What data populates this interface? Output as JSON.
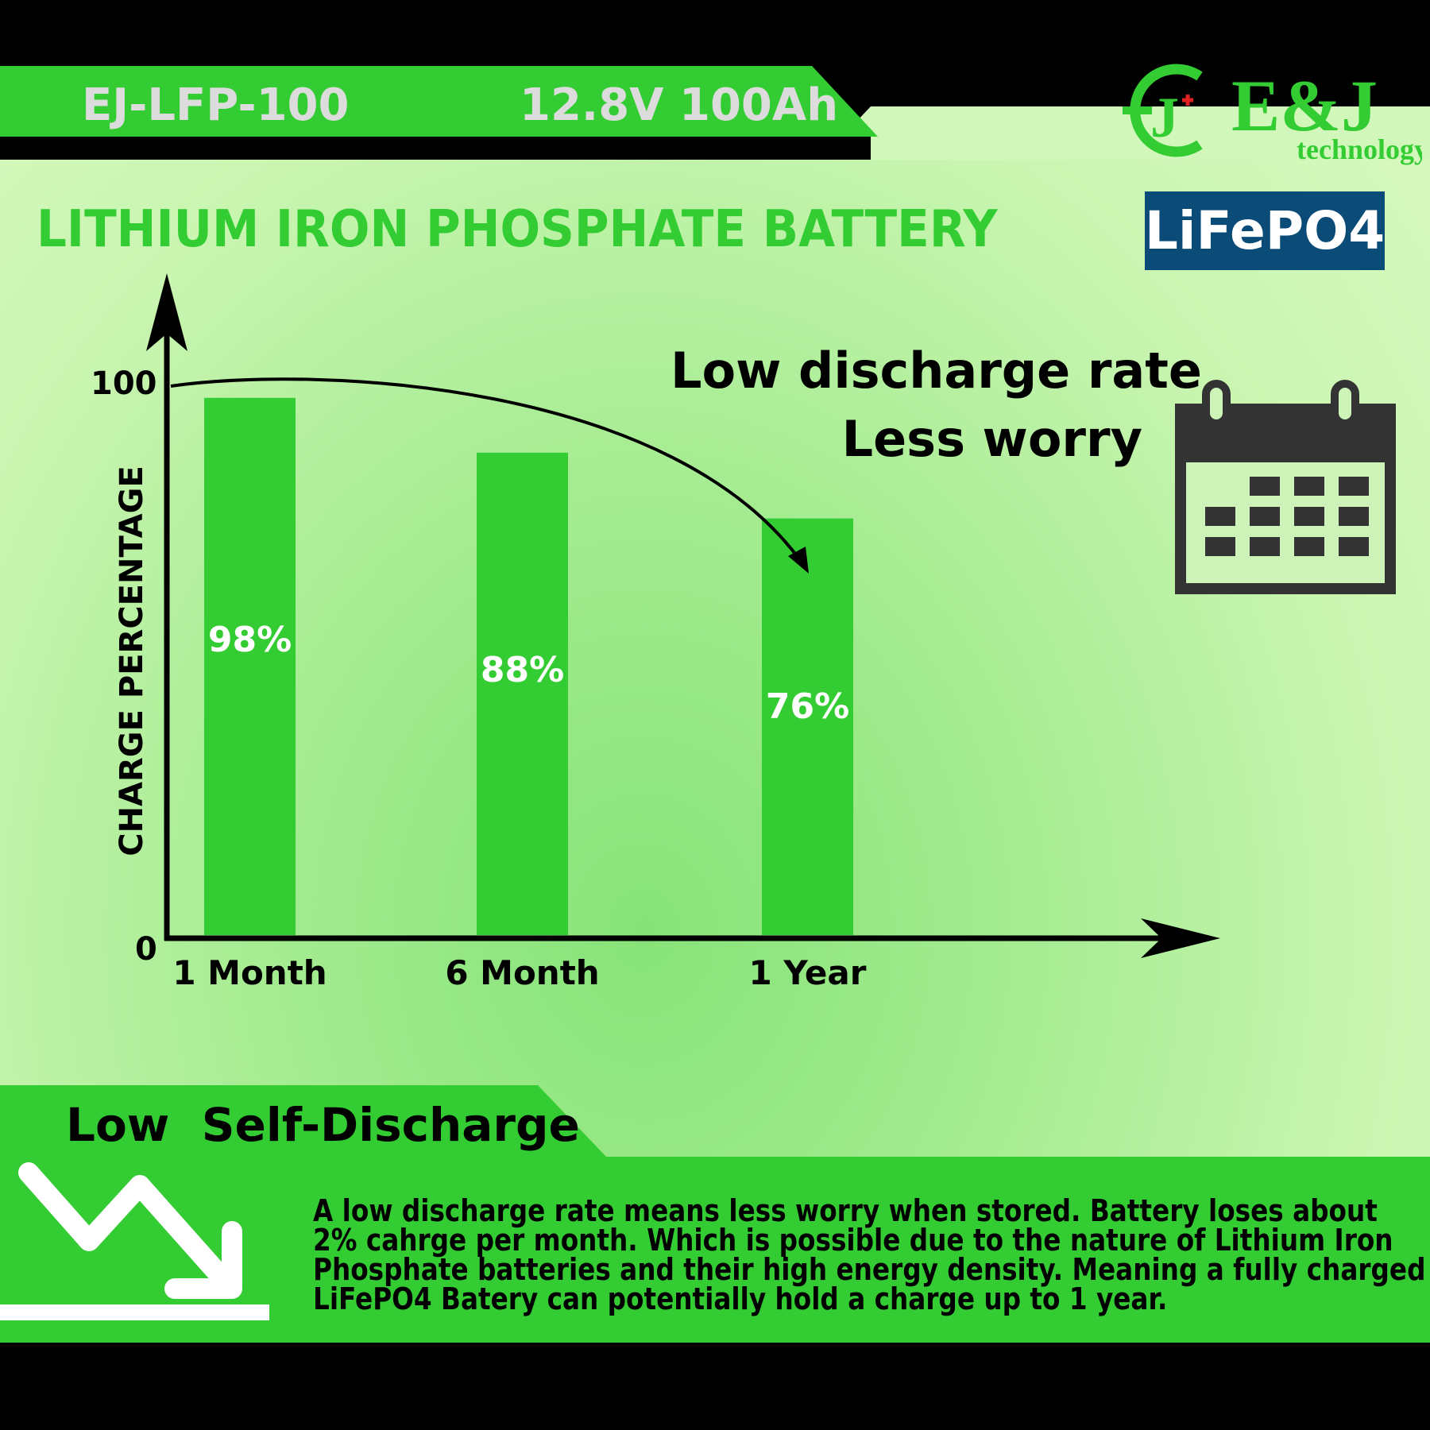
{
  "header": {
    "model": "EJ-LFP-100",
    "spec": "12.8V 100Ah"
  },
  "logo": {
    "text": "E&J",
    "subtext": "technology",
    "mark": "J+"
  },
  "title": "LITHIUM IRON PHOSPHATE BATTERY",
  "badge": "LiFePO4",
  "slogan": {
    "line1": "Low discharge rate",
    "line2": "Less worry"
  },
  "chart_data": {
    "type": "bar",
    "categories": [
      "1 Month",
      "6 Month",
      "1 Year"
    ],
    "values": [
      98,
      88,
      76
    ],
    "value_labels": [
      "98%",
      "88%",
      "76%"
    ],
    "ylabel": "CHARGE PERCENTAGE",
    "xlabel": "",
    "ylim": [
      0,
      100
    ],
    "yticks": [
      "0",
      "100"
    ],
    "bar_color": "#33cc33",
    "annotation": "curved arrow from 100 to 1 Year bar"
  },
  "section": {
    "title": "Low  Self-Discharge",
    "lines": [
      "A low discharge rate means less worry when stored. Battery loses about",
      "2% cahrge per month. Which is possible due to the nature of Lithium Iron",
      "Phosphate batteries and their high energy density. Meaning a fully charged",
      "LiFePO4 Batery can potentially hold a charge up to 1 year."
    ]
  },
  "colors": {
    "accent": "#33cc33",
    "badge": "#0a4b78",
    "icon": "#333333"
  }
}
